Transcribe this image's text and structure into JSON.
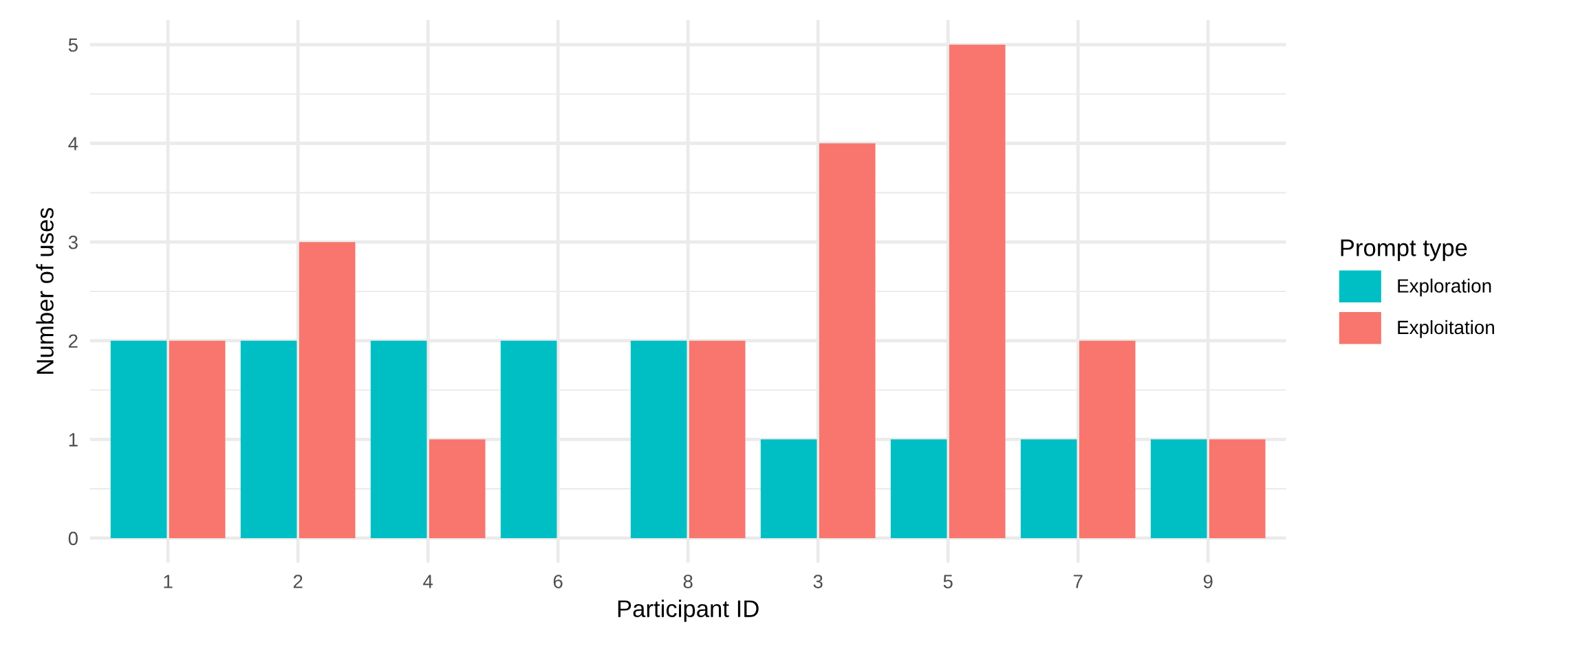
{
  "chart_data": {
    "type": "bar",
    "xlabel": "Participant ID",
    "ylabel": "Number of uses",
    "legend_title": "Prompt type",
    "categories": [
      "1",
      "2",
      "4",
      "6",
      "8",
      "3",
      "5",
      "7",
      "9"
    ],
    "series": [
      {
        "name": "Exploration",
        "color": "#00bfc4",
        "values": [
          2,
          2,
          2,
          2,
          2,
          1,
          1,
          1,
          1
        ]
      },
      {
        "name": "Exploitation",
        "color": "#f8766d",
        "values": [
          2,
          3,
          1,
          0,
          2,
          4,
          5,
          2,
          1
        ]
      }
    ],
    "ylim": [
      -0.25,
      5.25
    ],
    "yticks": [
      0,
      1,
      2,
      3,
      4,
      5
    ],
    "grid": true,
    "legend": "right"
  }
}
